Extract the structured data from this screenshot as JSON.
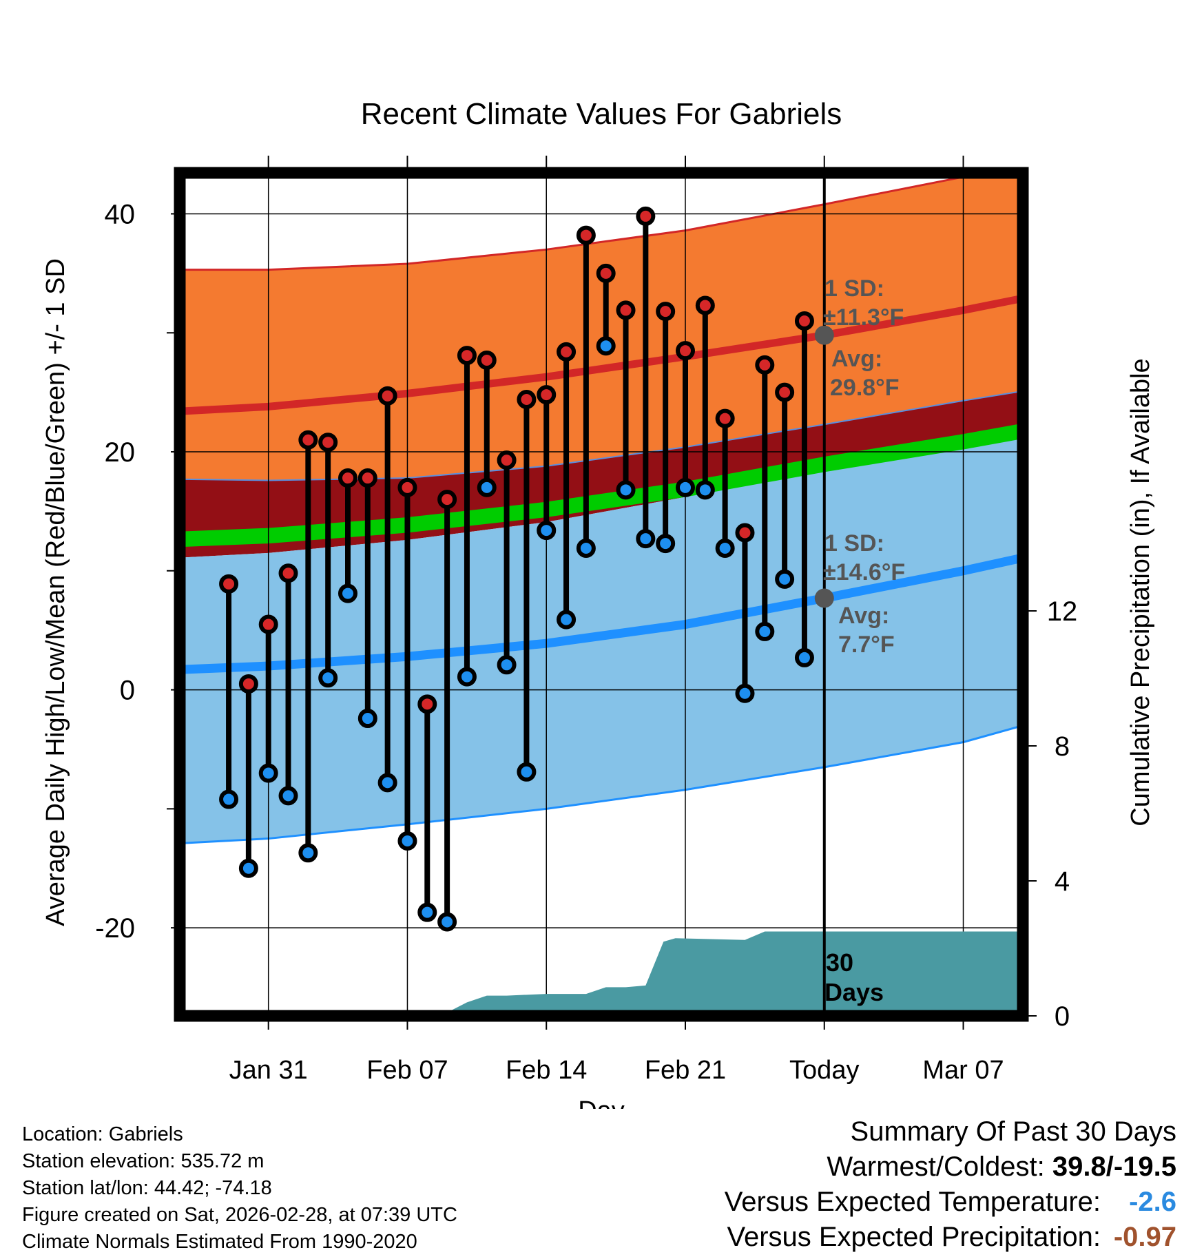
{
  "chart_data": {
    "type": "line",
    "title": "Recent Climate Values For Gabriels",
    "xlabel": "Day",
    "ylabel": "Average Daily High/Low/Mean (Red/Blue/Green) +/- 1 SD",
    "ylabel2": "Cumulative Precipitation (in), If Available",
    "ylim": [
      -27.4,
      43.5
    ],
    "y_ticks": [
      40,
      20,
      0,
      -20
    ],
    "y2_ticks": [
      12,
      8,
      4,
      0
    ],
    "x_ticks": [
      "Jan 31",
      "Feb 07",
      "Feb 14",
      "Feb 21",
      "Today",
      "Mar 07"
    ],
    "x_tick_days": [
      31,
      38,
      45,
      52,
      59,
      66
    ],
    "today_day": 59,
    "daily": [
      {
        "day": 29,
        "high": 8.9,
        "low": -9.2
      },
      {
        "day": 30,
        "high": 0.5,
        "low": -15.0
      },
      {
        "day": 31,
        "high": 5.5,
        "low": -7.0
      },
      {
        "day": 32,
        "high": 9.8,
        "low": -8.9
      },
      {
        "day": 33,
        "high": 21.0,
        "low": -13.7
      },
      {
        "day": 34,
        "high": 20.8,
        "low": 1.0
      },
      {
        "day": 35,
        "high": 17.8,
        "low": 8.1
      },
      {
        "day": 36,
        "high": 17.8,
        "low": -2.4
      },
      {
        "day": 37,
        "high": 24.7,
        "low": -7.8
      },
      {
        "day": 38,
        "high": 17.0,
        "low": -12.7
      },
      {
        "day": 39,
        "high": -1.2,
        "low": -18.7
      },
      {
        "day": 40,
        "high": 16.0,
        "low": -19.5
      },
      {
        "day": 41,
        "high": 28.1,
        "low": 1.1
      },
      {
        "day": 42,
        "high": 27.7,
        "low": 17.0
      },
      {
        "day": 43,
        "high": 19.3,
        "low": 2.1
      },
      {
        "day": 44,
        "high": 24.4,
        "low": -6.9
      },
      {
        "day": 45,
        "high": 24.8,
        "low": 13.4
      },
      {
        "day": 46,
        "high": 28.4,
        "low": 5.9
      },
      {
        "day": 47,
        "high": 38.2,
        "low": 11.9
      },
      {
        "day": 48,
        "high": 35.0,
        "low": 28.9
      },
      {
        "day": 49,
        "high": 31.9,
        "low": 16.8
      },
      {
        "day": 50,
        "high": 39.8,
        "low": 12.7
      },
      {
        "day": 51,
        "high": 31.8,
        "low": 12.3
      },
      {
        "day": 52,
        "high": 28.5,
        "low": 17.0
      },
      {
        "day": 53,
        "high": 32.3,
        "low": 16.8
      },
      {
        "day": 54,
        "high": 22.8,
        "low": 11.9
      },
      {
        "day": 55,
        "high": 13.2,
        "low": -0.3
      },
      {
        "day": 56,
        "high": 27.3,
        "low": 4.9
      },
      {
        "day": 57,
        "high": 25.0,
        "low": 9.3
      },
      {
        "day": 58,
        "high": 31.0,
        "low": 2.7
      }
    ],
    "normals": {
      "days": [
        26.5,
        31,
        38,
        45,
        52,
        59,
        66,
        69
      ],
      "high_avg": [
        23.4,
        23.8,
        24.9,
        26.3,
        28.0,
        29.8,
        31.9,
        32.9
      ],
      "high_upper": [
        35.3,
        35.3,
        35.8,
        37.0,
        38.6,
        40.8,
        43.1,
        44.2
      ],
      "high_lower": [
        17.7,
        17.6,
        17.8,
        18.8,
        20.4,
        22.3,
        24.3,
        25.1
      ],
      "low_avg": [
        1.7,
        2.0,
        2.8,
        3.9,
        5.5,
        7.7,
        10.0,
        11.1
      ],
      "low_upper": [
        11.1,
        11.5,
        12.6,
        14.1,
        16.2,
        18.6,
        20.4,
        21.3
      ],
      "low_lower": [
        -12.9,
        -12.5,
        -11.3,
        -10.0,
        -8.4,
        -6.5,
        -4.4,
        -3.0
      ],
      "mean_upper": [
        13.3,
        13.6,
        14.5,
        15.8,
        17.5,
        19.6,
        21.5,
        22.4
      ],
      "mean_lower": [
        12.0,
        12.3,
        13.2,
        14.5,
        16.2,
        18.3,
        20.2,
        21.1
      ]
    },
    "precip_cumulative": {
      "days": [
        26.5,
        35.5,
        38,
        40,
        41,
        42,
        43,
        45,
        47,
        48,
        49,
        50,
        50.9,
        51.5,
        55,
        56,
        57,
        59,
        69
      ],
      "values": [
        0,
        0,
        0.1,
        0.1,
        0.4,
        0.6,
        0.6,
        0.65,
        0.65,
        0.85,
        0.85,
        0.9,
        2.2,
        2.3,
        2.25,
        2.5,
        2.5,
        2.5,
        2.5
      ]
    },
    "annotations": {
      "high_sd_title": "1 SD:",
      "high_sd_value": "±11.3°F",
      "high_avg_title": "Avg:",
      "high_avg_value": "29.8°F",
      "low_sd_title": "1 SD:",
      "low_sd_value": "±14.6°F",
      "low_avg_title": "Avg:",
      "low_avg_value": "7.7°F",
      "days_line1": "30",
      "days_line2": "Days"
    },
    "colors": {
      "high_band": "#f47a30",
      "high_line": "#d22727",
      "overlap_band": "#930f15",
      "mean_band": "#00cc00",
      "low_band": "#85c2e8",
      "low_line": "#1e90ff",
      "low_edge": "#1e90ff",
      "precip": "#4a9aa2",
      "high_dot": "#d62728",
      "low_dot": "#1e8ff0",
      "marker_text": "#555555",
      "marker_dot": "#555555"
    }
  },
  "info": {
    "location": "Location: Gabriels",
    "elevation": "Station elevation: 535.72 m",
    "latlon": "Station lat/lon: 44.42; -74.18",
    "created": "Figure created on Sat, 2026-02-28, at 07:39 UTC",
    "normals": "Climate Normals Estimated From 1990-2020"
  },
  "summary": {
    "title": "Summary Of Past 30 Days",
    "warmest_label": "Warmest/Coldest: ",
    "warmest_value": "39.8/-19.5",
    "temp_label": "Versus Expected Temperature:",
    "temp_value": "-2.6",
    "precip_label": "Versus Expected Precipitation:",
    "precip_value": "-0.97"
  }
}
